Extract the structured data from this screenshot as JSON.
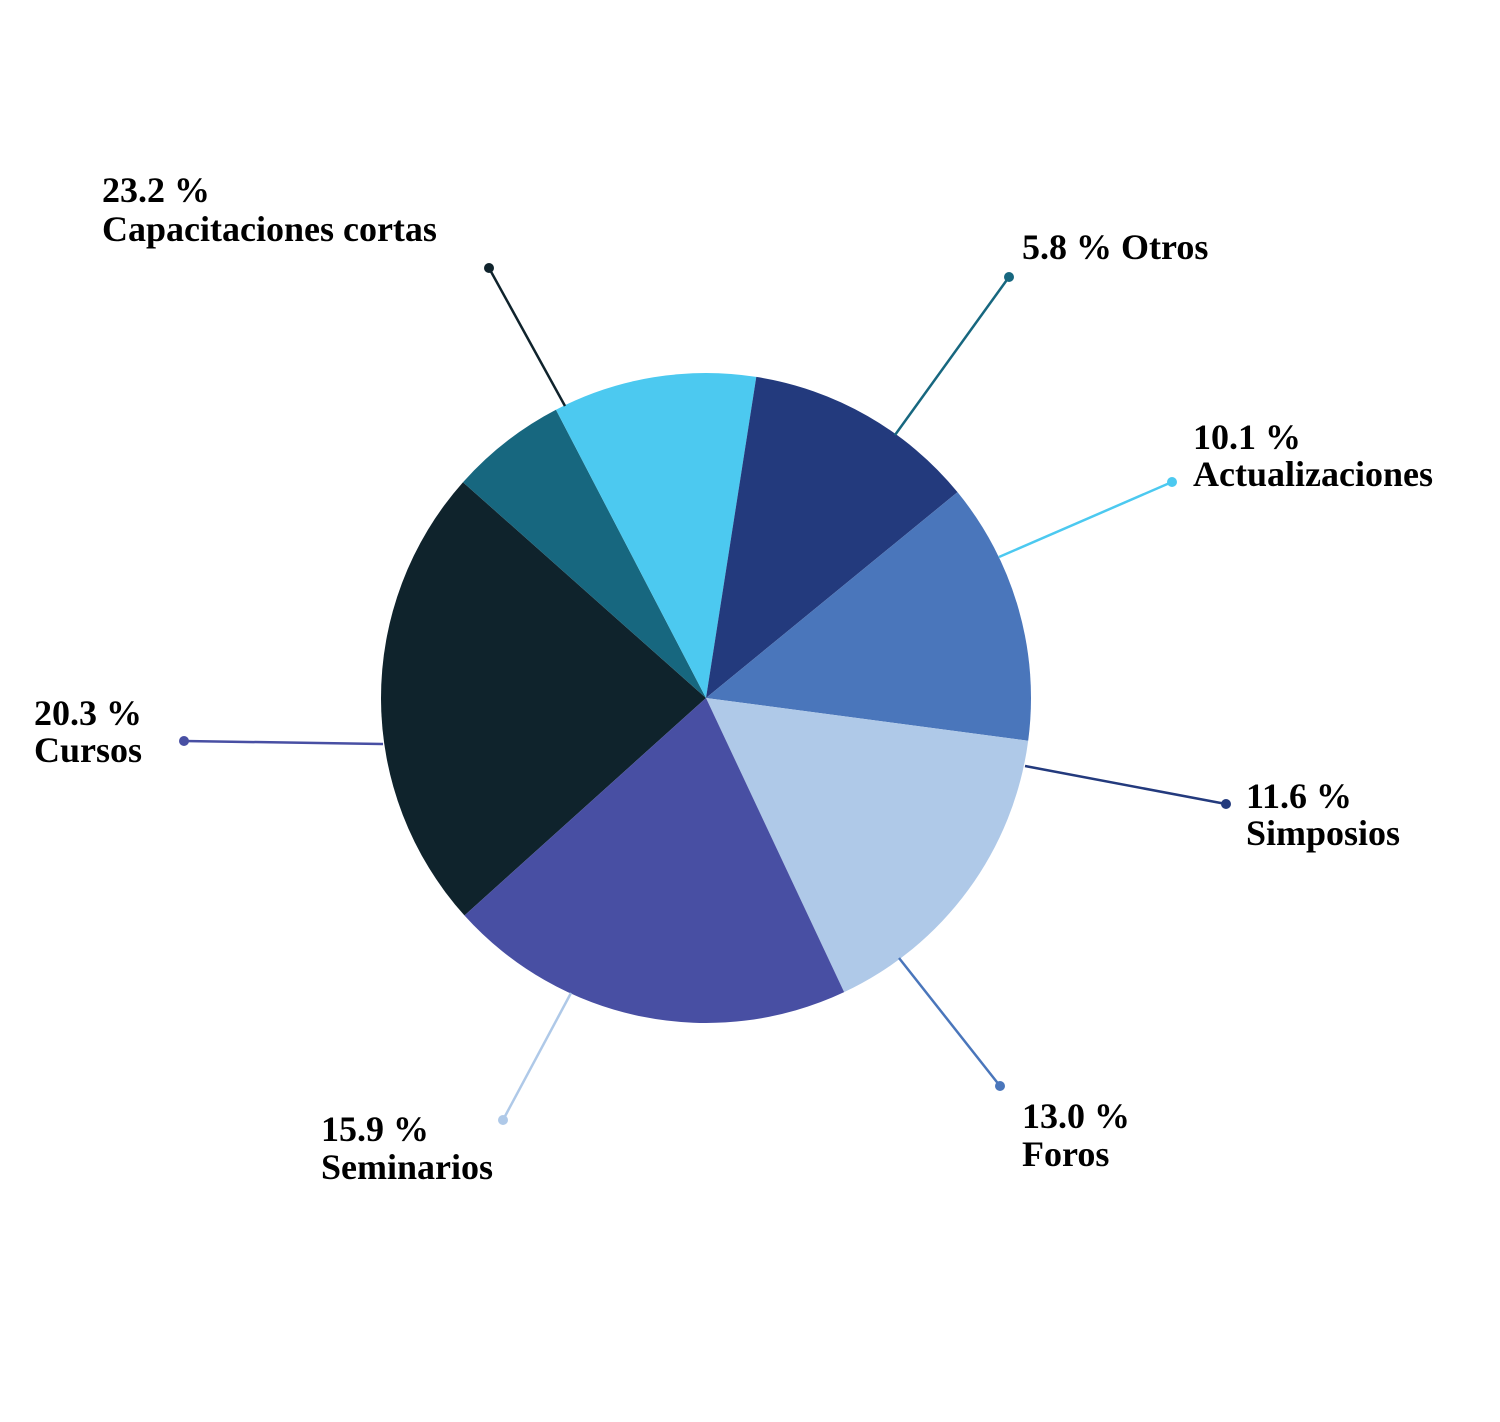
{
  "chart_data": {
    "type": "pie",
    "slices": [
      {
        "name": "Capacitaciones cortas",
        "pct_label": "23.2 %",
        "value": 23.2,
        "color": "#0f232c"
      },
      {
        "name": "Otros",
        "pct_label": "5.8 %",
        "value": 5.8,
        "color": "#17677f"
      },
      {
        "name": "Actualizaciones",
        "pct_label": "10.1 %",
        "value": 10.1,
        "color": "#4cc9f0"
      },
      {
        "name": "Simposios",
        "pct_label": "11.6 %",
        "value": 11.6,
        "color": "#233a7d"
      },
      {
        "name": "Foros",
        "pct_label": "13.0 %",
        "value": 13.0,
        "color": "#4a76bb"
      },
      {
        "name": "Seminarios",
        "pct_label": "15.9 %",
        "value": 15.9,
        "color": "#afc9e8"
      },
      {
        "name": "Cursos",
        "pct_label": "20.3 %",
        "value": 20.3,
        "color": "#484fa3"
      }
    ]
  }
}
